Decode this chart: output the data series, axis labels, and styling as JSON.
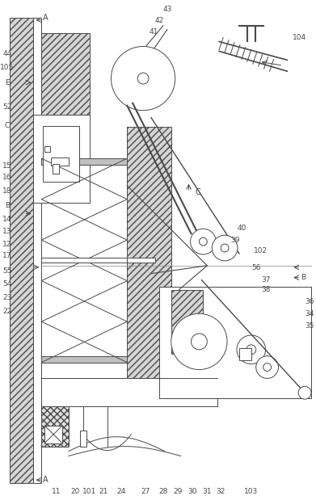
{
  "bg_color": "#ffffff",
  "line_color": "#4a4a4a",
  "figsize": [
    3.91,
    6.19
  ],
  "dpi": 100,
  "labels": {
    "A_top": "A",
    "A_bot": "A",
    "left_col": [
      "44",
      "105",
      "E",
      "52",
      "C",
      "15",
      "16",
      "18",
      "B",
      "14",
      "13",
      "12",
      "17",
      "55",
      "54",
      "23",
      "22"
    ],
    "bottom_row": [
      "11",
      "20",
      "101",
      "21",
      "24",
      "27",
      "28",
      "29",
      "30",
      "31",
      "32",
      "103"
    ],
    "right_col": [
      "B",
      "36",
      "34",
      "35"
    ],
    "upper_right": [
      "40",
      "39",
      "102",
      "56",
      "37",
      "38"
    ],
    "top_labels": [
      "43",
      "42",
      "41"
    ],
    "top_right": "104",
    "C_mid": "C"
  }
}
